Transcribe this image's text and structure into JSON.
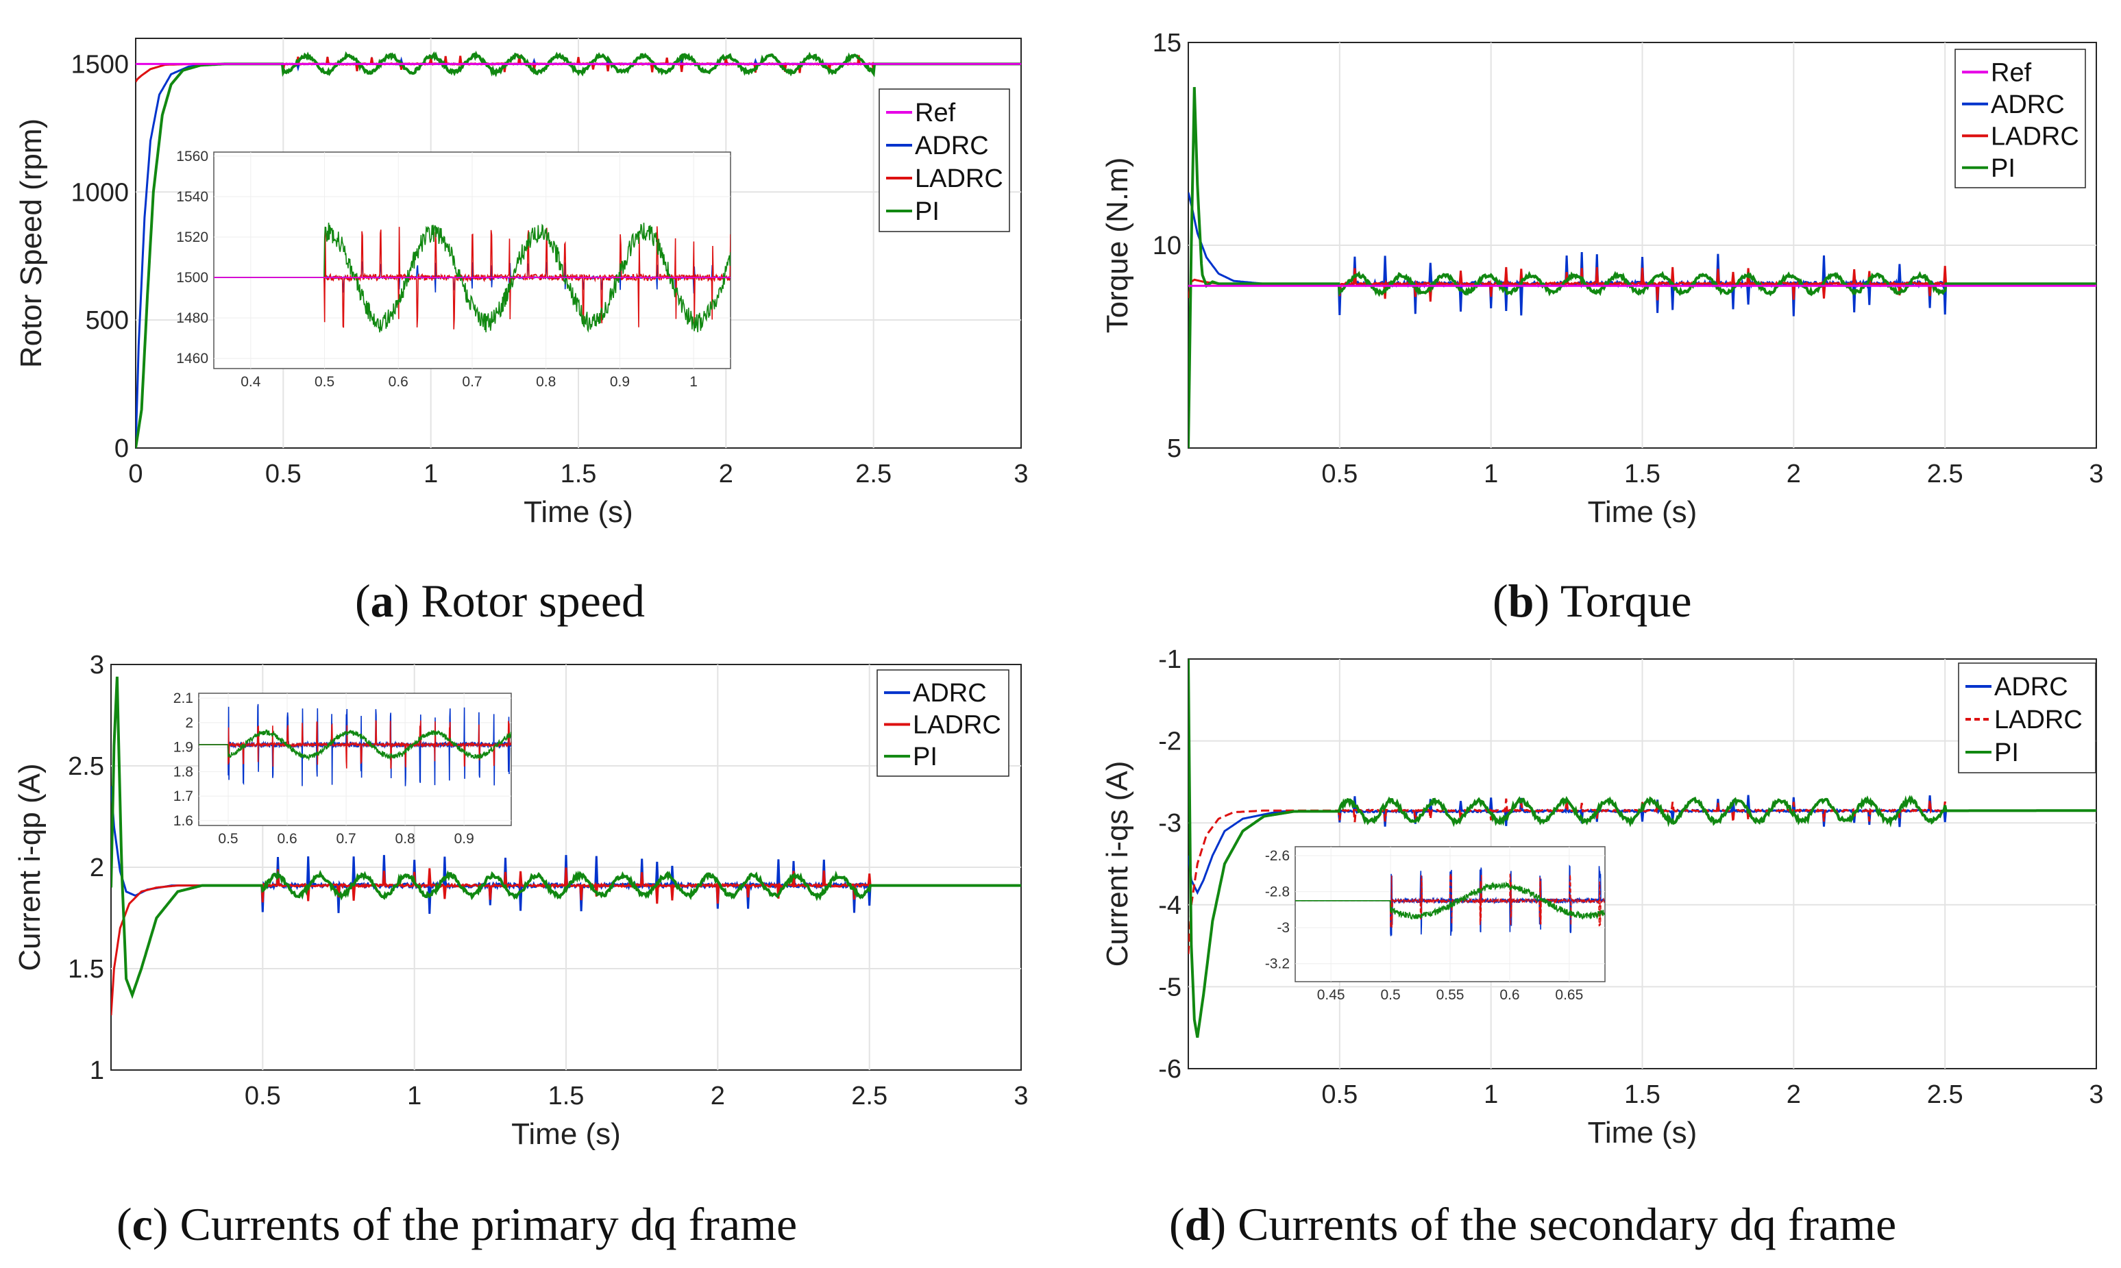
{
  "chart_data": [
    {
      "id": "a",
      "type": "line",
      "caption_letter": "a",
      "caption_text": "Rotor speed",
      "xlabel": "Time (s)",
      "ylabel": "Rotor Speed (rpm)",
      "xlim": [
        0,
        3
      ],
      "ylim": [
        0,
        1600
      ],
      "xticks": [
        0,
        0.5,
        1,
        1.5,
        2,
        2.5,
        3
      ],
      "xtick_labels": [
        "0",
        "0.5",
        "1",
        "1.5",
        "2",
        "2.5",
        "3"
      ],
      "yticks": [
        0,
        500,
        1000,
        1500
      ],
      "ytick_labels": [
        "0",
        "500",
        "1000",
        "1500"
      ],
      "legend_position": "upper-right",
      "legend": [
        "Ref",
        "ADRC",
        "LADRC",
        "PI"
      ],
      "series": [
        {
          "name": "Ref",
          "color": "#e600e6",
          "final": 1500,
          "x": [
            0,
            3
          ],
          "y": [
            1500,
            1500
          ]
        },
        {
          "name": "ADRC",
          "color": "#0033cc",
          "final": 1500,
          "x": [
            0,
            0.01,
            0.03,
            0.05,
            0.08,
            0.12,
            0.18,
            0.25,
            0.35,
            3
          ],
          "y": [
            0,
            400,
            900,
            1200,
            1380,
            1460,
            1490,
            1499,
            1500,
            1500
          ]
        },
        {
          "name": "LADRC",
          "color": "#dd1111",
          "final": 1500,
          "x": [
            0,
            0.005,
            0.02,
            0.05,
            0.1,
            0.2,
            3
          ],
          "y": [
            1430,
            1440,
            1455,
            1480,
            1497,
            1500,
            1500
          ]
        },
        {
          "name": "PI",
          "color": "#118811",
          "final": 1500,
          "x": [
            0,
            0.02,
            0.04,
            0.06,
            0.09,
            0.12,
            0.16,
            0.22,
            0.3,
            3
          ],
          "y": [
            0,
            150,
            600,
            1000,
            1300,
            1420,
            1475,
            1495,
            1500,
            1500
          ]
        }
      ],
      "disturbance": {
        "start": 0.5,
        "end": 2.5,
        "amp": {
          "ADRC": 18,
          "LADRC": 35,
          "PI": 45
        }
      },
      "inset": {
        "xlim": [
          0.35,
          1.05
        ],
        "ylim": [
          1455,
          1562
        ],
        "xticks": [
          0.4,
          0.5,
          0.6,
          0.7,
          0.8,
          0.9,
          1
        ],
        "xtick_labels": [
          "0.4",
          "0.5",
          "0.6",
          "0.7",
          "0.8",
          "0.9",
          "1"
        ],
        "yticks": [
          1460,
          1480,
          1500,
          1520,
          1540,
          1560
        ],
        "ytick_labels": [
          "1460",
          "1480",
          "1500",
          "1520",
          "1540",
          "1560"
        ],
        "center": 1500,
        "amp": {
          "ADRC": 8,
          "LADRC": 26,
          "PI": 32
        }
      }
    },
    {
      "id": "b",
      "type": "line",
      "caption_letter": "b",
      "caption_text": "Torque",
      "xlabel": "Time (s)",
      "ylabel": "Torque (N.m)",
      "xlim": [
        0,
        3
      ],
      "ylim": [
        5,
        15
      ],
      "xticks": [
        0.5,
        1,
        1.5,
        2,
        2.5,
        3
      ],
      "xtick_labels": [
        "0.5",
        "1",
        "1.5",
        "2",
        "2.5",
        "3"
      ],
      "yticks": [
        5,
        10,
        15
      ],
      "ytick_labels": [
        "5",
        "10",
        "15"
      ],
      "legend_position": "upper-right",
      "legend": [
        "Ref",
        "ADRC",
        "LADRC",
        "PI"
      ],
      "series": [
        {
          "name": "Ref",
          "color": "#e600e6",
          "final": 9,
          "x": [
            0,
            3
          ],
          "y": [
            9,
            9
          ]
        },
        {
          "name": "ADRC",
          "color": "#0033cc",
          "final": 9,
          "x": [
            0,
            0.01,
            0.03,
            0.06,
            0.1,
            0.15,
            0.25,
            3
          ],
          "y": [
            11.3,
            11.0,
            10.3,
            9.7,
            9.3,
            9.12,
            9.05,
            9.05
          ]
        },
        {
          "name": "LADRC",
          "color": "#dd1111",
          "final": 9,
          "x": [
            0,
            0.01,
            0.02,
            0.05,
            0.1,
            3
          ],
          "y": [
            8.7,
            9.1,
            9.15,
            9.1,
            9.05,
            9.05
          ]
        },
        {
          "name": "PI",
          "color": "#118811",
          "final": 9,
          "x": [
            0,
            0.01,
            0.02,
            0.03,
            0.045,
            0.06,
            0.08,
            0.1,
            0.15,
            3
          ],
          "y": [
            5,
            10,
            13.9,
            11.5,
            9.3,
            9.0,
            9.1,
            9.05,
            9.05,
            9.05
          ]
        }
      ],
      "disturbance": {
        "start": 0.5,
        "end": 2.5,
        "amp": {
          "ADRC": 0.8,
          "LADRC": 0.45,
          "PI": 0.3
        }
      }
    },
    {
      "id": "c",
      "type": "line",
      "caption_letter": "c",
      "caption_text": "Currents of the primary dq frame",
      "xlabel": "Time (s)",
      "ylabel": "Current i-qp (A)",
      "xlim": [
        0,
        3
      ],
      "ylim": [
        1,
        3
      ],
      "xticks": [
        0.5,
        1,
        1.5,
        2,
        2.5,
        3
      ],
      "xtick_labels": [
        "0.5",
        "1",
        "1.5",
        "2",
        "2.5",
        "3"
      ],
      "yticks": [
        1,
        1.5,
        2,
        2.5,
        3
      ],
      "ytick_labels": [
        "1",
        "1.5",
        "2",
        "2.5",
        "3"
      ],
      "legend_position": "upper-right",
      "legend": [
        "ADRC",
        "LADRC",
        "PI"
      ],
      "series": [
        {
          "name": "ADRC",
          "color": "#0033cc",
          "final": 1.91,
          "x": [
            0,
            0.01,
            0.03,
            0.05,
            0.08,
            0.12,
            0.2,
            3
          ],
          "y": [
            2.4,
            2.2,
            1.98,
            1.88,
            1.86,
            1.89,
            1.91,
            1.91
          ]
        },
        {
          "name": "LADRC",
          "color": "#dd1111",
          "final": 1.91,
          "x": [
            0,
            0.01,
            0.03,
            0.06,
            0.1,
            0.15,
            0.22,
            3
          ],
          "y": [
            1.27,
            1.5,
            1.7,
            1.82,
            1.88,
            1.9,
            1.91,
            1.91
          ]
        },
        {
          "name": "PI",
          "color": "#118811",
          "final": 1.91,
          "x": [
            0,
            0.01,
            0.02,
            0.035,
            0.05,
            0.07,
            0.1,
            0.15,
            0.22,
            0.3,
            3
          ],
          "y": [
            1.9,
            2.6,
            2.94,
            2.0,
            1.45,
            1.37,
            1.5,
            1.75,
            1.88,
            1.91,
            1.91
          ]
        }
      ],
      "disturbance": {
        "start": 0.5,
        "end": 2.5,
        "amp": {
          "ADRC": 0.16,
          "LADRC": 0.09,
          "PI": 0.07
        }
      },
      "inset": {
        "xlim": [
          0.45,
          0.98
        ],
        "ylim": [
          1.58,
          2.12
        ],
        "xticks": [
          0.5,
          0.6,
          0.7,
          0.8,
          0.9
        ],
        "xtick_labels": [
          "0.5",
          "0.6",
          "0.7",
          "0.8",
          "0.9"
        ],
        "yticks": [
          1.6,
          1.7,
          1.8,
          1.9,
          2,
          2.1
        ],
        "ytick_labels": [
          "1.6",
          "1.7",
          "1.8",
          "1.9",
          "2",
          "2.1"
        ],
        "center": 1.91,
        "amp": {
          "ADRC": 0.17,
          "LADRC": 0.1,
          "PI": 0.07
        }
      }
    },
    {
      "id": "d",
      "type": "line",
      "caption_letter": "d",
      "caption_text": "Currents of the secondary dq frame",
      "xlabel": "Time (s)",
      "ylabel": "Current i-qs (A)",
      "xlim": [
        0,
        3
      ],
      "ylim": [
        -6,
        -1
      ],
      "xticks": [
        0.5,
        1,
        1.5,
        2,
        2.5,
        3
      ],
      "xtick_labels": [
        "0.5",
        "1",
        "1.5",
        "2",
        "2.5",
        "3"
      ],
      "yticks": [
        -6,
        -5,
        -4,
        -3,
        -2,
        -1
      ],
      "ytick_labels": [
        "-6",
        "-5",
        "-4",
        "-3",
        "-2",
        "-1"
      ],
      "legend_position": "upper-right",
      "legend": [
        "ADRC",
        "LADRC",
        "PI"
      ],
      "series": [
        {
          "name": "ADRC",
          "color": "#0033cc",
          "final": -2.85,
          "x": [
            0,
            0.01,
            0.03,
            0.05,
            0.08,
            0.12,
            0.18,
            0.3,
            3
          ],
          "y": [
            -3.4,
            -3.7,
            -3.85,
            -3.7,
            -3.4,
            -3.1,
            -2.95,
            -2.86,
            -2.85
          ]
        },
        {
          "name": "LADRC",
          "color": "#dd1111",
          "dashed": true,
          "final": -2.85,
          "x": [
            0,
            0.01,
            0.03,
            0.06,
            0.1,
            0.15,
            0.25,
            3
          ],
          "y": [
            -4.6,
            -4.0,
            -3.5,
            -3.15,
            -2.95,
            -2.87,
            -2.85,
            -2.85
          ]
        },
        {
          "name": "PI",
          "color": "#118811",
          "final": -2.85,
          "x": [
            0,
            0.005,
            0.01,
            0.02,
            0.03,
            0.05,
            0.08,
            0.12,
            0.18,
            0.25,
            0.35,
            3
          ],
          "y": [
            -1.0,
            -3.0,
            -4.5,
            -5.4,
            -5.62,
            -5.1,
            -4.2,
            -3.5,
            -3.1,
            -2.92,
            -2.86,
            -2.85
          ]
        }
      ],
      "disturbance": {
        "start": 0.5,
        "end": 2.5,
        "amp": {
          "ADRC": 0.2,
          "LADRC": 0.15,
          "PI": 0.18
        }
      },
      "inset": {
        "xlim": [
          0.42,
          0.68
        ],
        "ylim": [
          -3.3,
          -2.55
        ],
        "xticks": [
          0.45,
          0.5,
          0.55,
          0.6,
          0.65
        ],
        "xtick_labels": [
          "0.45",
          "0.5",
          "0.55",
          "0.6",
          "0.65"
        ],
        "yticks": [
          -3.2,
          -3,
          -2.8,
          -2.6
        ],
        "ytick_labels": [
          "-3.2",
          "-3",
          "-2.8",
          "-2.6"
        ],
        "center": -2.85,
        "amp": {
          "ADRC": 0.2,
          "LADRC": 0.15,
          "PI": 0.12
        }
      }
    }
  ]
}
